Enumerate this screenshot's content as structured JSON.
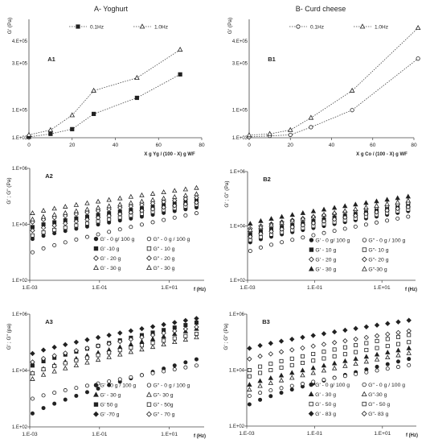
{
  "chart_data": [
    {
      "id": "A1",
      "type": "line",
      "title": "A-  Yoghurt",
      "panel_label": "A1",
      "ylabel": "G' (Pa)",
      "xlabel": "X g Yg / (100 - X)  g WF",
      "xlim": [
        0,
        80
      ],
      "xticks": [
        "0",
        "20",
        "40",
        "60",
        "80"
      ],
      "ylim": [
        1000,
        500000
      ],
      "yticks": [
        "1.E+03",
        "1.E+05",
        "3.E+05",
        "4.E+05"
      ],
      "legend_position": "top",
      "series": [
        {
          "name": "0.1Hz",
          "marker": "square",
          "x": [
            0,
            10,
            20,
            30,
            50,
            70
          ],
          "y": [
            3000,
            12000,
            28000,
            85000,
            150000,
            250000
          ]
        },
        {
          "name": "1.0Hz",
          "marker": "triangle",
          "x": [
            0,
            10,
            20,
            30,
            50,
            70
          ],
          "y": [
            9000,
            25000,
            80000,
            180000,
            235000,
            360000
          ]
        }
      ]
    },
    {
      "id": "B1",
      "type": "line",
      "title": "B- Curd cheese",
      "panel_label": "B1",
      "ylabel": "G' (Pa)",
      "xlabel": "X g Co / (100 - X)  g WF",
      "xlim": [
        0,
        80
      ],
      "xticks": [
        "0",
        "20",
        "40",
        "60",
        "80"
      ],
      "ylim": [
        1000,
        500000
      ],
      "yticks": [
        "1.E+03",
        "1.E+05",
        "3.E+05",
        "4.E+05"
      ],
      "legend_position": "top",
      "series": [
        {
          "name": "0.1Hz",
          "marker": "circle",
          "x": [
            0,
            10,
            20,
            30,
            50,
            82
          ],
          "y": [
            3000,
            6000,
            9000,
            35000,
            100000,
            320000
          ]
        },
        {
          "name": "1.0Hz",
          "marker": "triangle",
          "x": [
            0,
            10,
            20,
            30,
            50,
            82
          ],
          "y": [
            8000,
            12000,
            25000,
            70000,
            180000,
            460000
          ]
        }
      ]
    },
    {
      "id": "A2",
      "type": "scatter",
      "panel_label": "A2",
      "ylabel": "G' ; G\" (Pa)",
      "xlabel": "f (Hz)",
      "xscale": "log",
      "yscale": "log",
      "xlim": [
        0.001,
        100
      ],
      "ylim": [
        100,
        1000000
      ],
      "xticks": [
        "1.E-03",
        "1.E-01",
        "1.E+01"
      ],
      "yticks": [
        "1.E+02",
        "1.E+04",
        "1.E+06"
      ],
      "legend_position": "bottom-right",
      "series": [
        {
          "name": "G' - 0 g/ 100 g",
          "marker": "circle",
          "filled": true,
          "y_start": 3000,
          "y_end": 40000
        },
        {
          "name": "G\" - 0 g / 100 g",
          "marker": "circle",
          "filled": false,
          "y_start": 1000,
          "y_end": 25000
        },
        {
          "name": "G' -10 g",
          "marker": "square",
          "filled": true,
          "y_start": 8000,
          "y_end": 70000
        },
        {
          "name": "G\" - 10 g",
          "marker": "square",
          "filled": false,
          "y_start": 4000,
          "y_end": 50000
        },
        {
          "name": "G' - 20 g",
          "marker": "diamond",
          "filled": false,
          "y_start": 12000,
          "y_end": 90000
        },
        {
          "name": "G\" - 20 g",
          "marker": "diamond",
          "filled": false,
          "y_start": 6000,
          "y_end": 60000
        },
        {
          "name": "G' - 30 g",
          "marker": "triangle",
          "filled": false,
          "y_start": 25000,
          "y_end": 200000
        },
        {
          "name": "G\" - 30 g",
          "marker": "triangle",
          "filled": false,
          "y_start": 15000,
          "y_end": 120000
        }
      ]
    },
    {
      "id": "B2",
      "type": "scatter",
      "panel_label": "B2",
      "ylabel": "G' ; G\" (Pa)",
      "xlabel": "f (Hz)",
      "xscale": "log",
      "yscale": "log",
      "xlim": [
        0.001,
        100
      ],
      "ylim": [
        100,
        1000000
      ],
      "xticks": [
        "1.E-03",
        "1.E-01",
        "1.E+01"
      ],
      "yticks": [
        "1.E+02",
        "1.E+04",
        "1.E+06"
      ],
      "legend_position": "bottom-right",
      "series": [
        {
          "name": "G' - 0 g/ 100 g",
          "marker": "circle",
          "filled": true,
          "y_start": 2500,
          "y_end": 35000
        },
        {
          "name": "G\" - 0 g / 100 g",
          "marker": "circle",
          "filled": false,
          "y_start": 1200,
          "y_end": 22000
        },
        {
          "name": "G' - 10 g",
          "marker": "square",
          "filled": true,
          "y_start": 5000,
          "y_end": 55000
        },
        {
          "name": "G\"- 10 g",
          "marker": "square",
          "filled": false,
          "y_start": 3000,
          "y_end": 40000
        },
        {
          "name": "G' - 20 g",
          "marker": "diamond",
          "filled": false,
          "y_start": 8000,
          "y_end": 70000
        },
        {
          "name": "G\"- 20 g",
          "marker": "diamond",
          "filled": false,
          "y_start": 4000,
          "y_end": 50000
        },
        {
          "name": "G' - 30 g",
          "marker": "triangle",
          "filled": true,
          "y_start": 12000,
          "y_end": 120000
        },
        {
          "name": "G\"-30 g",
          "marker": "triangle",
          "filled": false,
          "y_start": 7000,
          "y_end": 85000
        }
      ]
    },
    {
      "id": "A3",
      "type": "scatter",
      "panel_label": "A3",
      "ylabel": "G' ; G\" (pa)",
      "xlabel": "f (Hz)",
      "xscale": "log",
      "yscale": "log",
      "xlim": [
        0.001,
        100
      ],
      "ylim": [
        100,
        1000000
      ],
      "xticks": [
        "1.E-03",
        "1.E-01",
        "1.E+01"
      ],
      "yticks": [
        "1.E+02",
        "1.E+04",
        "1.E+06"
      ],
      "legend_position": "bottom-right",
      "series": [
        {
          "name": "G' - 0 g / 100 g",
          "marker": "circle",
          "filled": true,
          "y_start": 300,
          "y_end": 25000
        },
        {
          "name": "G\" - 0 g / 100 g",
          "marker": "circle",
          "filled": false,
          "y_start": 1000,
          "y_end": 15000
        },
        {
          "name": "G' - 30 g",
          "marker": "triangle",
          "filled": true,
          "y_start": 8000,
          "y_end": 300000
        },
        {
          "name": "G\"- 30 g",
          "marker": "triangle",
          "filled": false,
          "y_start": 5000,
          "y_end": 150000
        },
        {
          "name": "G' 50 g",
          "marker": "square",
          "filled": true,
          "y_start": 15000,
          "y_end": 500000
        },
        {
          "name": "G\" - 50g",
          "marker": "square",
          "filled": false,
          "y_start": 8000,
          "y_end": 200000
        },
        {
          "name": "G' -70 g",
          "marker": "diamond",
          "filled": true,
          "y_start": 40000,
          "y_end": 700000
        },
        {
          "name": "G\" - 70 g",
          "marker": "diamond",
          "filled": false,
          "y_start": 20000,
          "y_end": 350000
        }
      ]
    },
    {
      "id": "B3",
      "type": "scatter",
      "panel_label": "B3",
      "ylabel": "G' ; G\" (Pa)",
      "xlabel": "f (Hz)",
      "xscale": "log",
      "yscale": "log",
      "xlim": [
        0.001,
        100
      ],
      "ylim": [
        100,
        1000000
      ],
      "xticks": [
        "1.E-03",
        "1.E-01",
        "1.E+01"
      ],
      "yticks": [
        "1.E+02",
        "1.E+04",
        "1.E+06"
      ],
      "legend_position": "bottom-right",
      "series": [
        {
          "name": "G' - 0 g/ 100 g",
          "marker": "circle",
          "filled": true,
          "y_start": 600,
          "y_end": 25000
        },
        {
          "name": "G\" - 0 g / 100 g",
          "marker": "circle",
          "filled": false,
          "y_start": 1200,
          "y_end": 15000
        },
        {
          "name": "G' - 30 g",
          "marker": "triangle",
          "filled": true,
          "y_start": 3000,
          "y_end": 60000
        },
        {
          "name": "G\"-30 g",
          "marker": "triangle",
          "filled": false,
          "y_start": 2000,
          "y_end": 40000
        },
        {
          "name": "G' - 50 g",
          "marker": "square",
          "filled": false,
          "y_start": 10000,
          "y_end": 180000
        },
        {
          "name": "G\" - 50 g",
          "marker": "square",
          "filled": false,
          "y_start": 6000,
          "y_end": 100000
        },
        {
          "name": "G' - 83 g",
          "marker": "diamond",
          "filled": true,
          "y_start": 60000,
          "y_end": 600000
        },
        {
          "name": "G\"- 83 g",
          "marker": "diamond",
          "filled": false,
          "y_start": 25000,
          "y_end": 250000
        }
      ]
    }
  ]
}
